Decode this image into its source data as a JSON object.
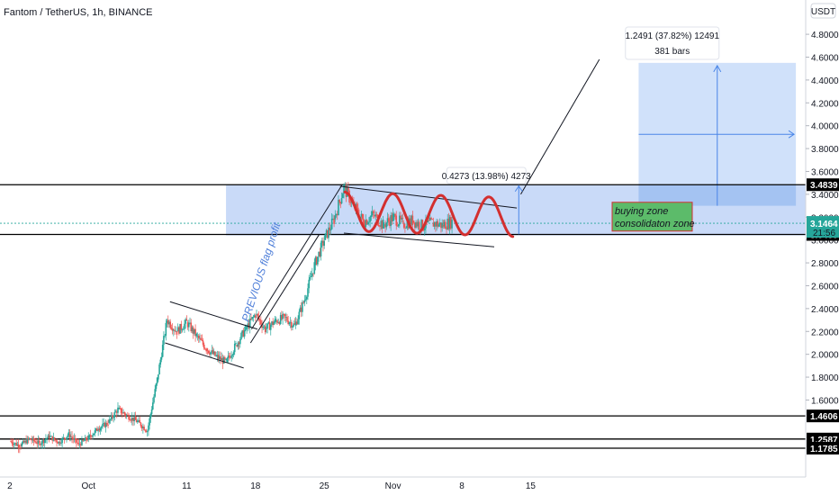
{
  "header": {
    "title": "Fantom / TetherUS, 1h, BINANCE"
  },
  "currency_button": "USDT",
  "chart_data": {
    "type": "line",
    "title": "Fantom / TetherUS, 1h, BINANCE",
    "xlabel": "",
    "ylabel": "",
    "ylim": [
      0.95,
      5.1
    ],
    "xlim": [
      -1,
      81
    ],
    "x_ticks": [
      {
        "x": 0,
        "label": "2"
      },
      {
        "x": 8,
        "label": "Oct"
      },
      {
        "x": 18,
        "label": "11"
      },
      {
        "x": 25,
        "label": "18"
      },
      {
        "x": 32,
        "label": "25"
      },
      {
        "x": 39,
        "label": "Nov"
      },
      {
        "x": 46,
        "label": "8"
      },
      {
        "x": 53,
        "label": "15"
      }
    ],
    "y_ticks": [
      "1.6000",
      "1.8000",
      "2.0000",
      "2.2000",
      "2.4000",
      "2.6000",
      "2.8000",
      "3.0000",
      "3.2000",
      "3.4000",
      "3.6000",
      "3.8000",
      "4.0000",
      "4.2000",
      "4.4000",
      "4.6000",
      "4.8000"
    ],
    "series": [
      {
        "values": [
          [
            0,
            1.24
          ],
          [
            1,
            1.2
          ],
          [
            2,
            1.26
          ],
          [
            3,
            1.22
          ],
          [
            4,
            1.28
          ],
          [
            5,
            1.23
          ],
          [
            6,
            1.3
          ],
          [
            7,
            1.21
          ],
          [
            8,
            1.27
          ],
          [
            9,
            1.35
          ],
          [
            10,
            1.4
          ],
          [
            11,
            1.52
          ],
          [
            12,
            1.46
          ],
          [
            13,
            1.41
          ],
          [
            14,
            1.33
          ],
          [
            15,
            1.78
          ],
          [
            16,
            2.3
          ],
          [
            17,
            2.2
          ],
          [
            18,
            2.28
          ],
          [
            19,
            2.16
          ],
          [
            20,
            2.05
          ],
          [
            21,
            1.98
          ],
          [
            22,
            1.93
          ],
          [
            23,
            2.08
          ],
          [
            24,
            2.22
          ],
          [
            25,
            2.35
          ],
          [
            26,
            2.22
          ],
          [
            27,
            2.29
          ],
          [
            28,
            2.32
          ],
          [
            29,
            2.25
          ],
          [
            30,
            2.48
          ],
          [
            31,
            2.78
          ],
          [
            32,
            3.0
          ],
          [
            33,
            3.18
          ],
          [
            34,
            3.46
          ],
          [
            35,
            3.3
          ],
          [
            36,
            3.16
          ],
          [
            37,
            3.22
          ],
          [
            38,
            3.13
          ],
          [
            39,
            3.2
          ],
          [
            40,
            3.14
          ],
          [
            41,
            3.17
          ],
          [
            42,
            3.12
          ],
          [
            43,
            3.15
          ],
          [
            44,
            3.13
          ],
          [
            45,
            3.16
          ]
        ]
      }
    ],
    "horizontal_levels": [
      {
        "value": 3.4839,
        "label": "3.4839",
        "color": "#000000"
      },
      {
        "value": 3.0488,
        "label": "3.0488",
        "color": "#000000"
      },
      {
        "value": 1.4606,
        "label": "1.4606",
        "color": "#000000"
      },
      {
        "value": 1.2587,
        "label": "1.2587",
        "color": "#000000"
      },
      {
        "value": 1.1785,
        "label": "1.1785",
        "color": "#000000"
      }
    ],
    "current_price": {
      "value": 3.1464,
      "label": "3.1464",
      "countdown": "21:56",
      "color": "#26a69a"
    },
    "buying_zone": {
      "y_low": 3.04,
      "y_high": 3.48,
      "x_start": 22,
      "x_end": 81,
      "color": "#bfd4f7"
    },
    "projection_box": {
      "x_start": 64,
      "x_end": 80,
      "y_low": 3.3,
      "y_high": 4.55,
      "color": "#a9c9f5"
    },
    "range_labels": [
      {
        "text": "1.2491 (37.82%) 12491",
        "sub": "381 bars"
      },
      {
        "text": "0.4273 (13.98%) 4273"
      }
    ],
    "annotations": {
      "note_line1": "buying zone",
      "note_line2": "consolidaton zone",
      "flag_text": "PREVIOUS flag profit"
    },
    "colors": {
      "up": "#26a69a",
      "down": "#ef5350",
      "line": "#131722",
      "wave": "#d32f2f",
      "zone": "#bfd4f7",
      "note_bg": "#5cbb6a"
    }
  }
}
